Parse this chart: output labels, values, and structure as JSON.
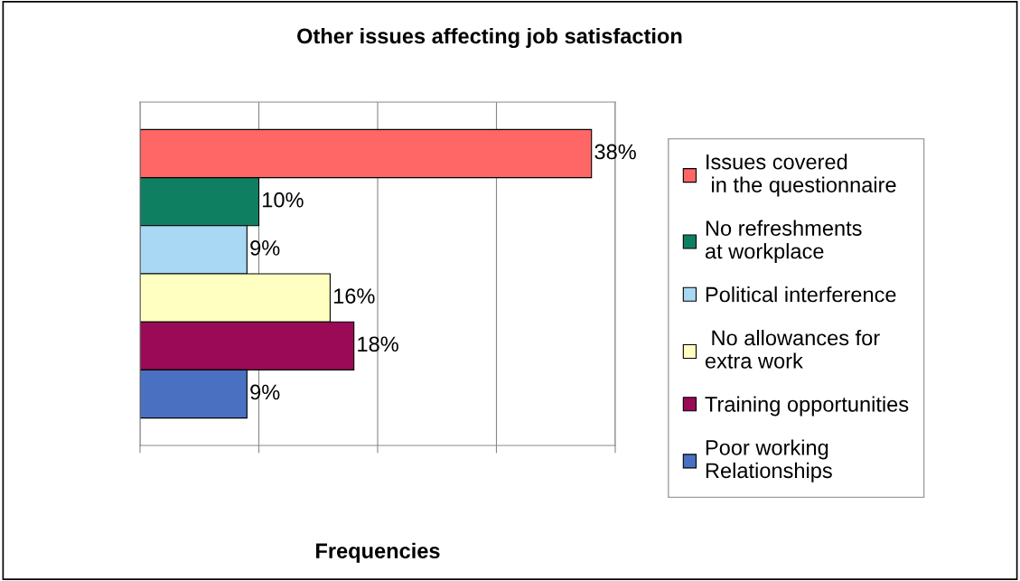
{
  "chart_data": {
    "type": "bar",
    "orientation": "horizontal",
    "title": "Other issues affecting job satisfaction",
    "xlabel": "Frequencies",
    "categories": [
      null
    ],
    "series": [
      {
        "name": "Issues covered\n in the questionnaire",
        "color": "#ff6666",
        "values": [
          38
        ],
        "value_labels": [
          "38%"
        ]
      },
      {
        "name": "No refreshments\nat workplace",
        "color": "#0f7f62",
        "values": [
          10
        ],
        "value_labels": [
          "10%"
        ]
      },
      {
        "name": "Political interference",
        "color": "#a8d8f4",
        "values": [
          9
        ],
        "value_labels": [
          "9%"
        ]
      },
      {
        "name": " No allowances for\nextra work",
        "color": "#ffffc2",
        "values": [
          16
        ],
        "value_labels": [
          "16%"
        ]
      },
      {
        "name": "Training opportunities",
        "color": "#9a0a56",
        "values": [
          18
        ],
        "value_labels": [
          "18%"
        ]
      },
      {
        "name": "Poor working\nRelationships",
        "color": "#4a70c2",
        "values": [
          9
        ],
        "value_labels": [
          "9%"
        ]
      }
    ],
    "xlim": [
      0,
      40
    ],
    "xticks": [
      {
        "value": 0,
        "label": null
      },
      {
        "value": 10,
        "label": null
      },
      {
        "value": 20,
        "label": null
      },
      {
        "value": 30,
        "label": null
      },
      {
        "value": 40,
        "label": null
      }
    ],
    "grid": "x",
    "legend": "right"
  }
}
